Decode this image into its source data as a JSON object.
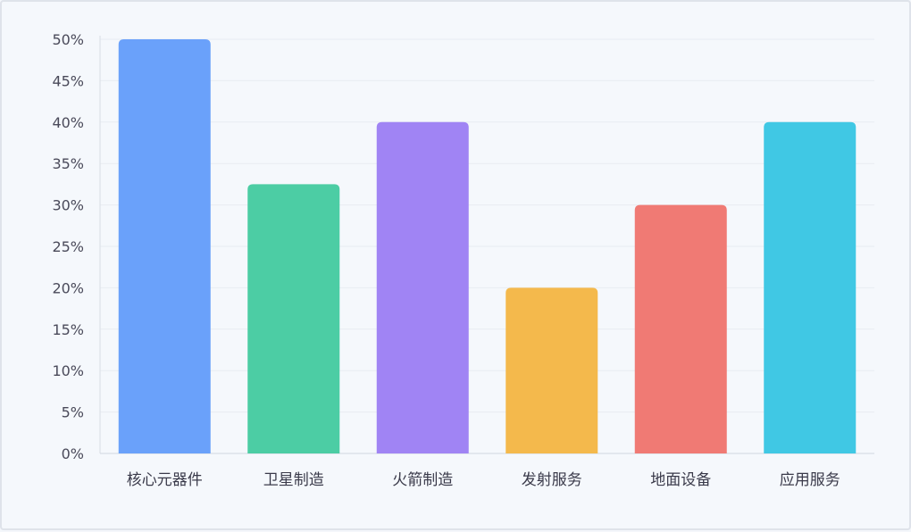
{
  "chart_data": {
    "type": "bar",
    "categories": [
      "核心元器件",
      "卫星制造",
      "火箭制造",
      "发射服务",
      "地面设备",
      "应用服务"
    ],
    "values": [
      50,
      32.5,
      40,
      20,
      30,
      40
    ],
    "unit": "%",
    "ylim": [
      0,
      50
    ],
    "yticks": [
      "0%",
      "5%",
      "10%",
      "15%",
      "20%",
      "25%",
      "30%",
      "35%",
      "40%",
      "45%",
      "50%"
    ],
    "grid": true,
    "legend": "none",
    "colors": [
      "#6aa1fa",
      "#4ccda4",
      "#a084f4",
      "#f4b94c",
      "#f07a74",
      "#40c8e4"
    ]
  }
}
